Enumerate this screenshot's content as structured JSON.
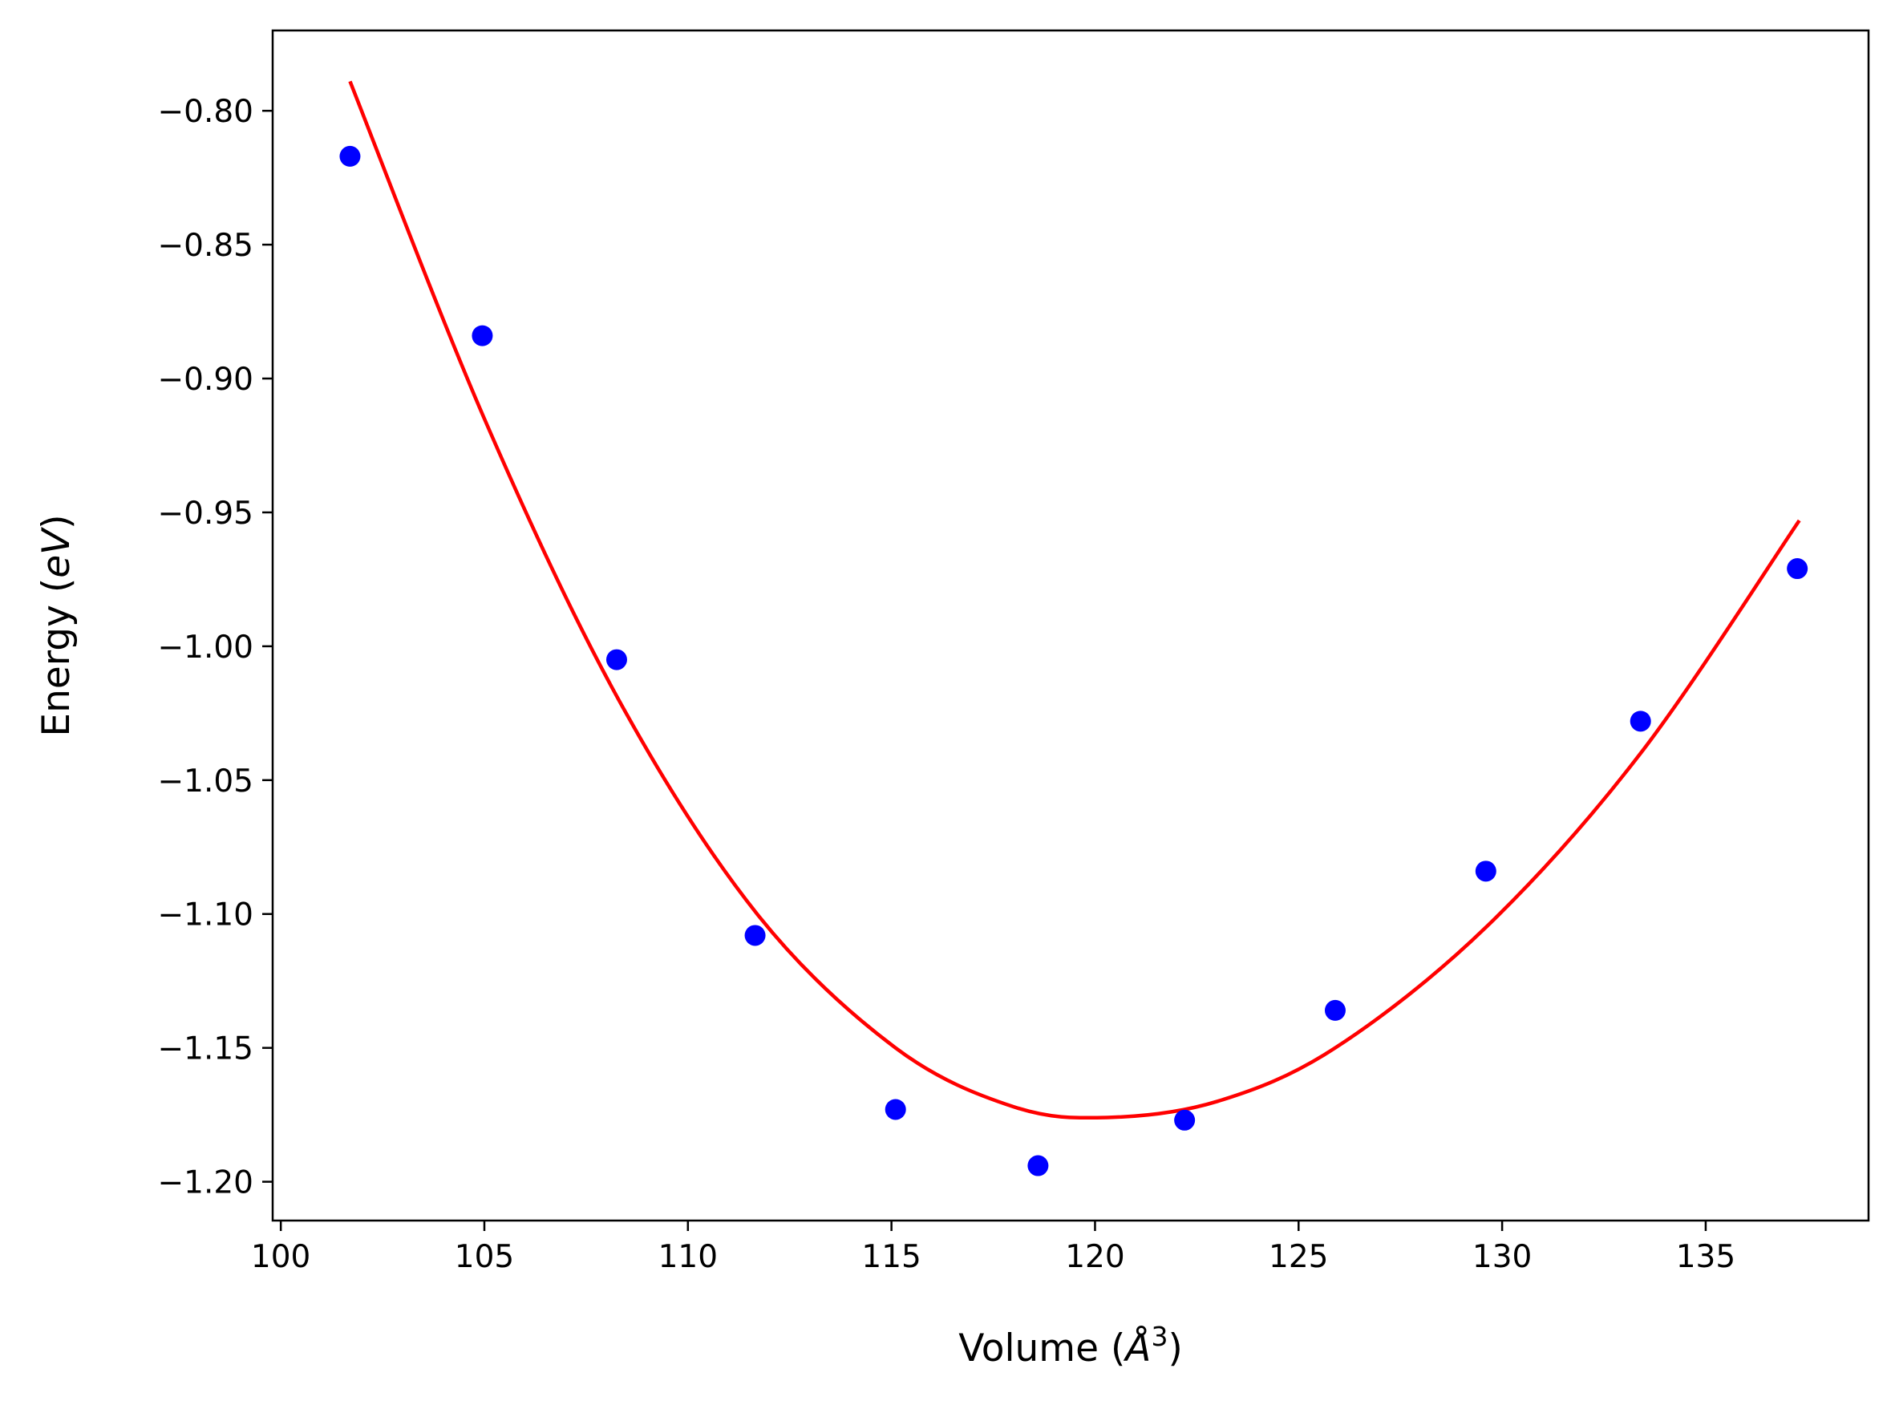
{
  "chart_data": {
    "type": "scatter",
    "title": "",
    "xlabel_parts": {
      "prefix": "Volume (",
      "symbol": "Å",
      "exponent": "3",
      "suffix": ")"
    },
    "ylabel_parts": {
      "prefix": "Energy (",
      "unit": "eV",
      "suffix": ")"
    },
    "xlim": [
      99.8,
      139.0
    ],
    "ylim": [
      -1.2145,
      -0.77
    ],
    "xticks": [
      100,
      105,
      110,
      115,
      120,
      125,
      130,
      135
    ],
    "xtick_labels": [
      "100",
      "105",
      "110",
      "115",
      "120",
      "125",
      "130",
      "135"
    ],
    "yticks": [
      -0.8,
      -0.85,
      -0.9,
      -0.95,
      -1.0,
      -1.05,
      -1.1,
      -1.15,
      -1.2
    ],
    "ytick_labels": [
      "−0.80",
      "−0.85",
      "−0.90",
      "−0.95",
      "−1.00",
      "−1.05",
      "−1.10",
      "−1.15",
      "−1.20"
    ],
    "grid": false,
    "legend": "none",
    "series": [
      {
        "kind": "scatter",
        "color": "#0000ff",
        "x": [
          101.7,
          104.95,
          108.25,
          111.65,
          115.1,
          118.6,
          122.2,
          125.9,
          129.6,
          133.4,
          137.25
        ],
        "y": [
          -0.817,
          -0.884,
          -1.005,
          -1.108,
          -1.173,
          -1.194,
          -1.177,
          -1.136,
          -1.084,
          -1.028,
          -0.971
        ]
      },
      {
        "kind": "line",
        "color": "#ff0000",
        "x": [
          101.7,
          105.0,
          108.3,
          111.7,
          115.1,
          118.0,
          120.3,
          123.0,
          125.9,
          129.6,
          133.4,
          137.3
        ],
        "y": [
          -0.789,
          -0.915,
          -1.02,
          -1.1,
          -1.15,
          -1.172,
          -1.176,
          -1.17,
          -1.15,
          -1.105,
          -1.04,
          -0.953
        ]
      }
    ]
  }
}
